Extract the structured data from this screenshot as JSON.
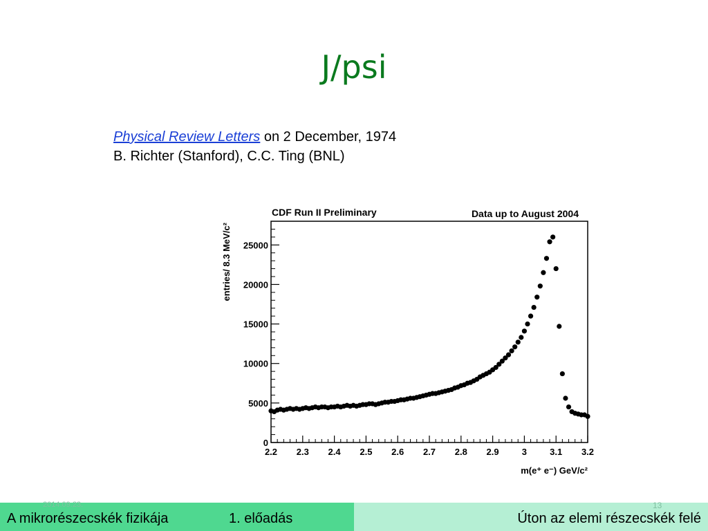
{
  "slide": {
    "title": "J/psi",
    "citation": {
      "journal": "Physical Review Letters",
      "date_text": " on 2 December, 1974",
      "authors": "B. Richter (Stanford), C.C. Ting (BNL)"
    }
  },
  "footer": {
    "date": "2014.09.23.",
    "page_number": "13",
    "course": "A mikrorészecskék fizikája",
    "lecture": "1. előadás",
    "topic": "Úton az elemi részecskék felé"
  },
  "chart_data": {
    "type": "scatter",
    "title_left": "CDF Run II Preliminary",
    "title_right": "Data up to August 2004",
    "xlabel": "m(e⁺ e⁻) GeV/c²",
    "ylabel": "entries/ 8.3 MeV/c²",
    "xlim": [
      2.2,
      3.2
    ],
    "ylim": [
      0,
      28000
    ],
    "xticks": [
      2.2,
      2.3,
      2.4,
      2.5,
      2.6,
      2.7,
      2.8,
      2.9,
      3,
      3.1,
      3.2
    ],
    "xtick_labels": [
      "2.2",
      "2.3",
      "2.4",
      "2.5",
      "2.6",
      "2.7",
      "2.8",
      "2.9",
      "3",
      "3.1",
      "3.2"
    ],
    "yticks": [
      0,
      5000,
      10000,
      15000,
      20000,
      25000
    ],
    "ytick_labels": [
      "0",
      "5000",
      "10000",
      "15000",
      "20000",
      "25000"
    ],
    "grid": false,
    "marker_color": "#000000",
    "series": [
      {
        "x": [
          2.2,
          2.21,
          2.22,
          2.23,
          2.24,
          2.25,
          2.26,
          2.27,
          2.28,
          2.29,
          2.3,
          2.31,
          2.32,
          2.33,
          2.34,
          2.35,
          2.36,
          2.37,
          2.38,
          2.39,
          2.4,
          2.41,
          2.42,
          2.43,
          2.44,
          2.45,
          2.46,
          2.47,
          2.48,
          2.49,
          2.5,
          2.51,
          2.52,
          2.53,
          2.54,
          2.55,
          2.56,
          2.57,
          2.58,
          2.59,
          2.6,
          2.61,
          2.62,
          2.63,
          2.64,
          2.65,
          2.66,
          2.67,
          2.68,
          2.69,
          2.7,
          2.71,
          2.72,
          2.73,
          2.74,
          2.75,
          2.76,
          2.77,
          2.78,
          2.79,
          2.8,
          2.81,
          2.82,
          2.83,
          2.84,
          2.85,
          2.86,
          2.87,
          2.88,
          2.89,
          2.9,
          2.91,
          2.92,
          2.93,
          2.94,
          2.95,
          2.96,
          2.97,
          2.98,
          2.99,
          3,
          3.01,
          3.02,
          3.03,
          3.04,
          3.05,
          3.06,
          3.07,
          3.08,
          3.09,
          3.1,
          3.11,
          3.12,
          3.13,
          3.14,
          3.15,
          3.16,
          3.17,
          3.18,
          3.19,
          3.2
        ],
        "y": [
          4000,
          3900,
          4100,
          4200,
          4100,
          4200,
          4300,
          4200,
          4300,
          4200,
          4300,
          4400,
          4300,
          4400,
          4500,
          4400,
          4500,
          4500,
          4400,
          4500,
          4500,
          4600,
          4500,
          4600,
          4700,
          4600,
          4700,
          4600,
          4700,
          4800,
          4800,
          4900,
          4900,
          4800,
          4900,
          5000,
          5100,
          5100,
          5200,
          5200,
          5300,
          5400,
          5400,
          5500,
          5600,
          5600,
          5700,
          5800,
          5900,
          6000,
          6100,
          6200,
          6200,
          6300,
          6400,
          6500,
          6600,
          6700,
          6900,
          7000,
          7200,
          7300,
          7500,
          7600,
          7800,
          8000,
          8300,
          8500,
          8700,
          8900,
          9200,
          9500,
          9900,
          10300,
          10700,
          11100,
          11600,
          12100,
          12700,
          13300,
          14100,
          15000,
          16000,
          17100,
          18400,
          19800,
          21500,
          23300,
          25400,
          26000,
          22000,
          14700,
          8700,
          5600,
          4500,
          3900,
          3700,
          3600,
          3500,
          3500,
          3300
        ]
      }
    ]
  }
}
